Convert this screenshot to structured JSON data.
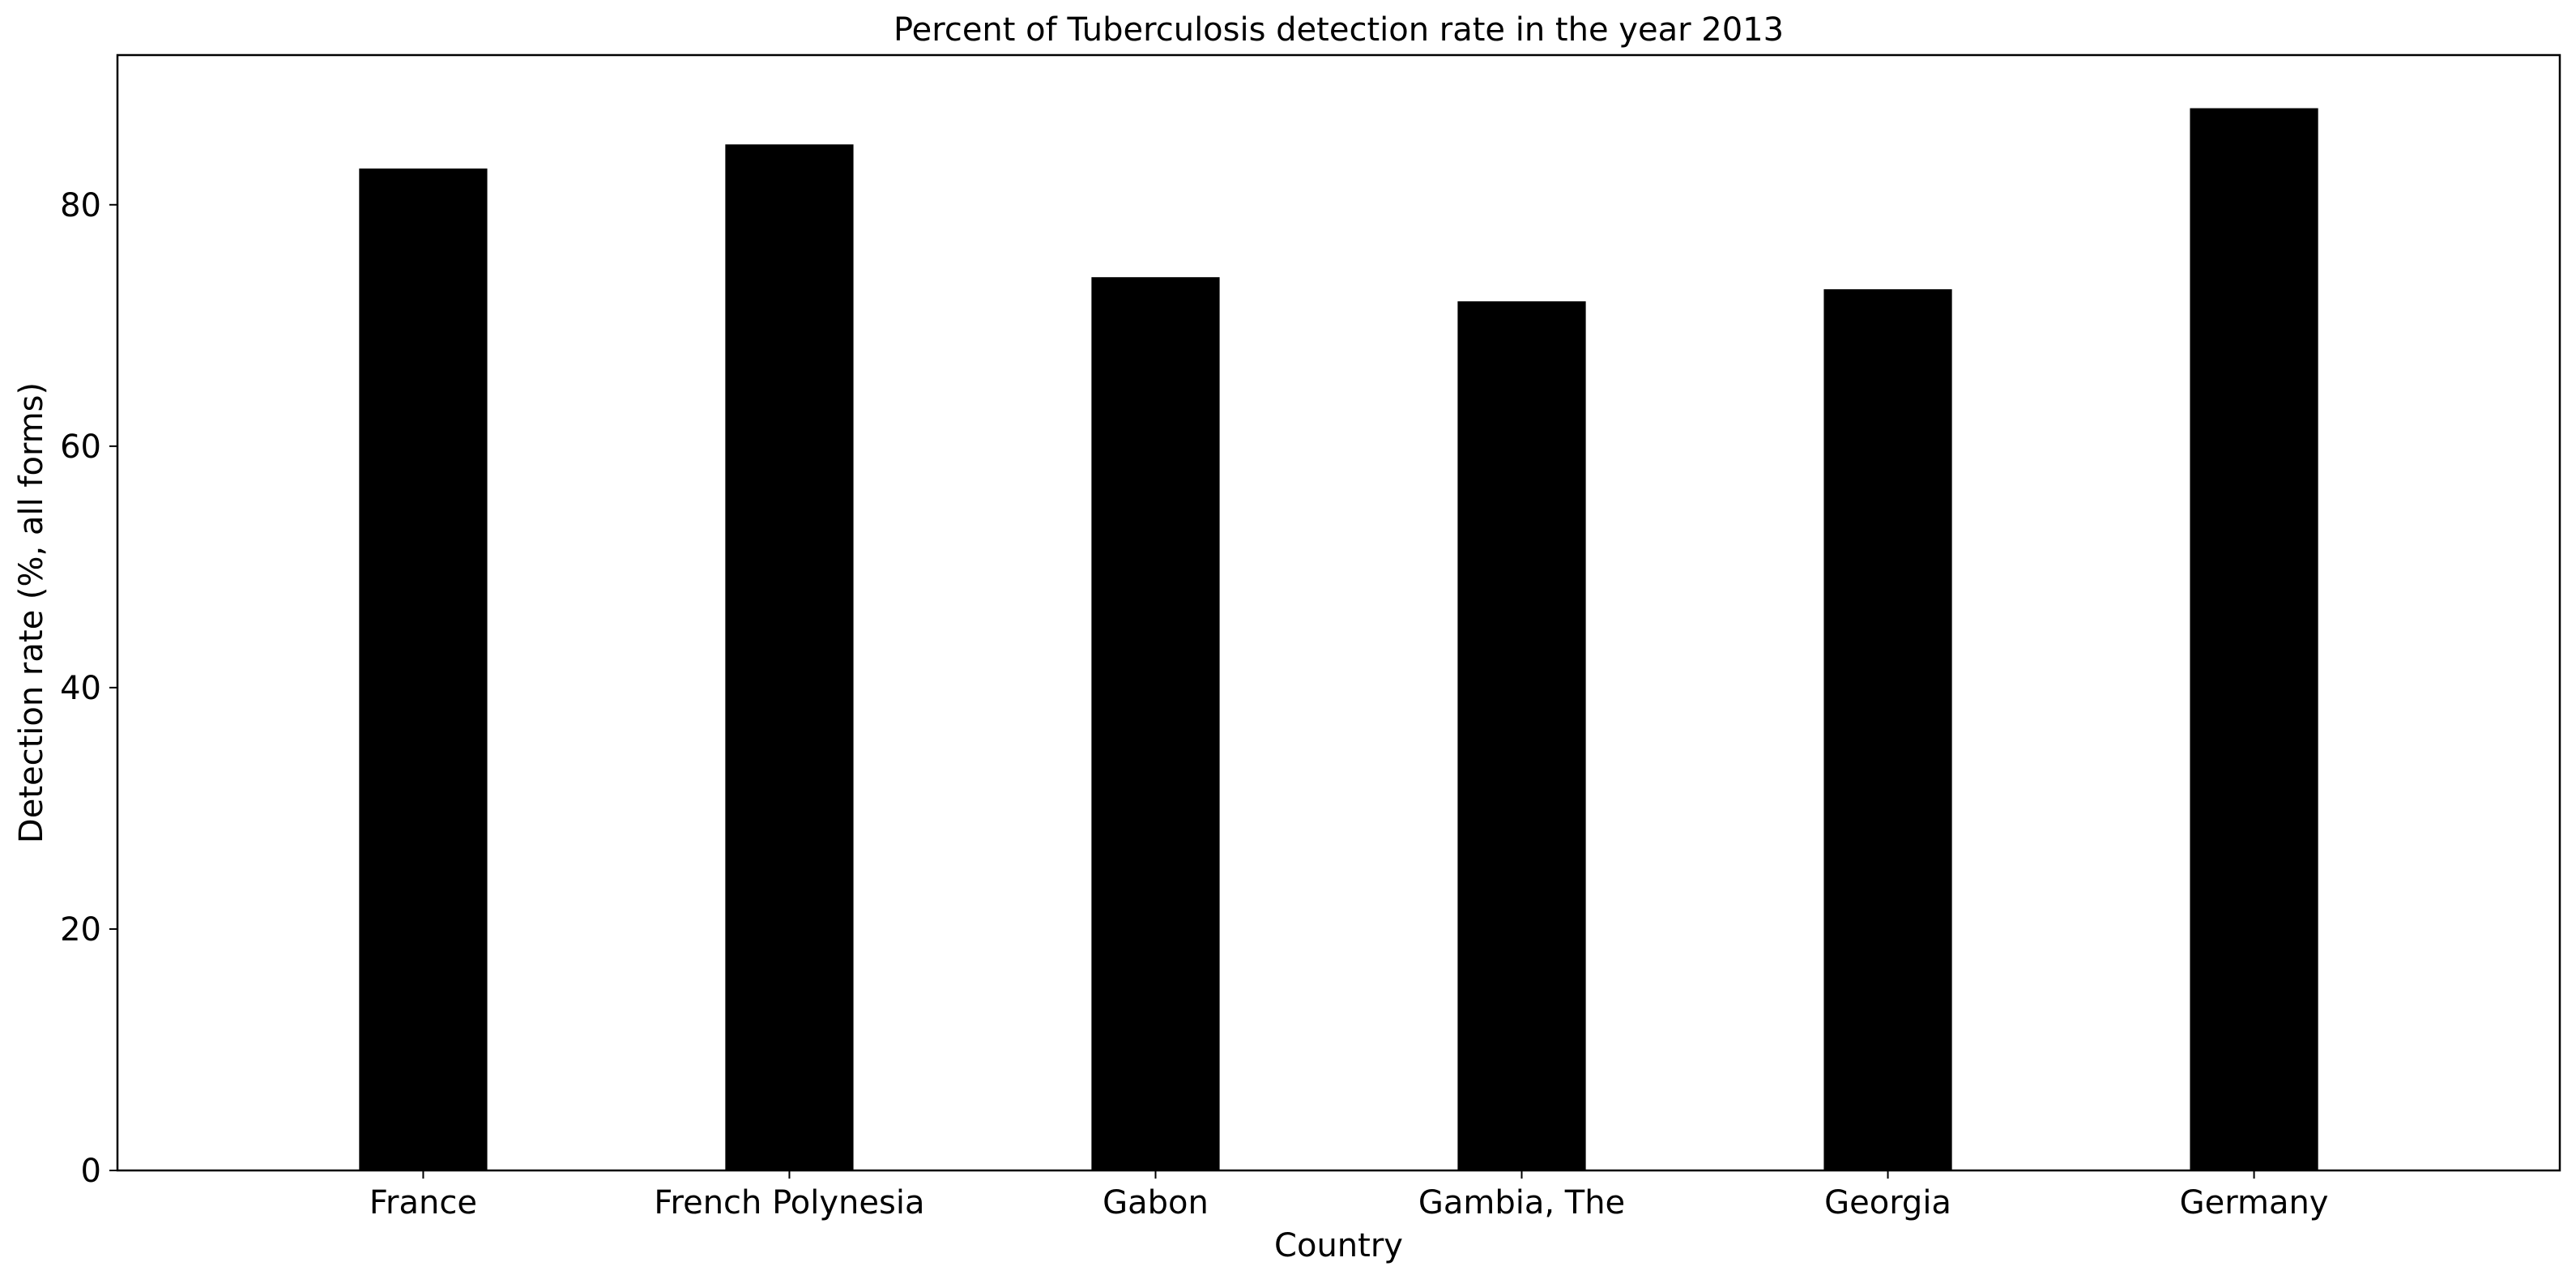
{
  "chart_data": {
    "type": "bar",
    "title": "Percent of Tuberculosis detection rate in the year 2013",
    "xlabel": "Country",
    "ylabel": "Detection rate (%, all forms)",
    "categories": [
      "France",
      "French Polynesia",
      "Gabon",
      "Gambia, The",
      "Georgia",
      "Germany"
    ],
    "values": [
      83,
      85,
      74,
      72,
      73,
      88
    ],
    "ylim": [
      0,
      92.4
    ],
    "yticks": [
      0,
      20,
      40,
      60,
      80
    ],
    "grid": false,
    "legend": "none",
    "bar_color": "#000000"
  }
}
